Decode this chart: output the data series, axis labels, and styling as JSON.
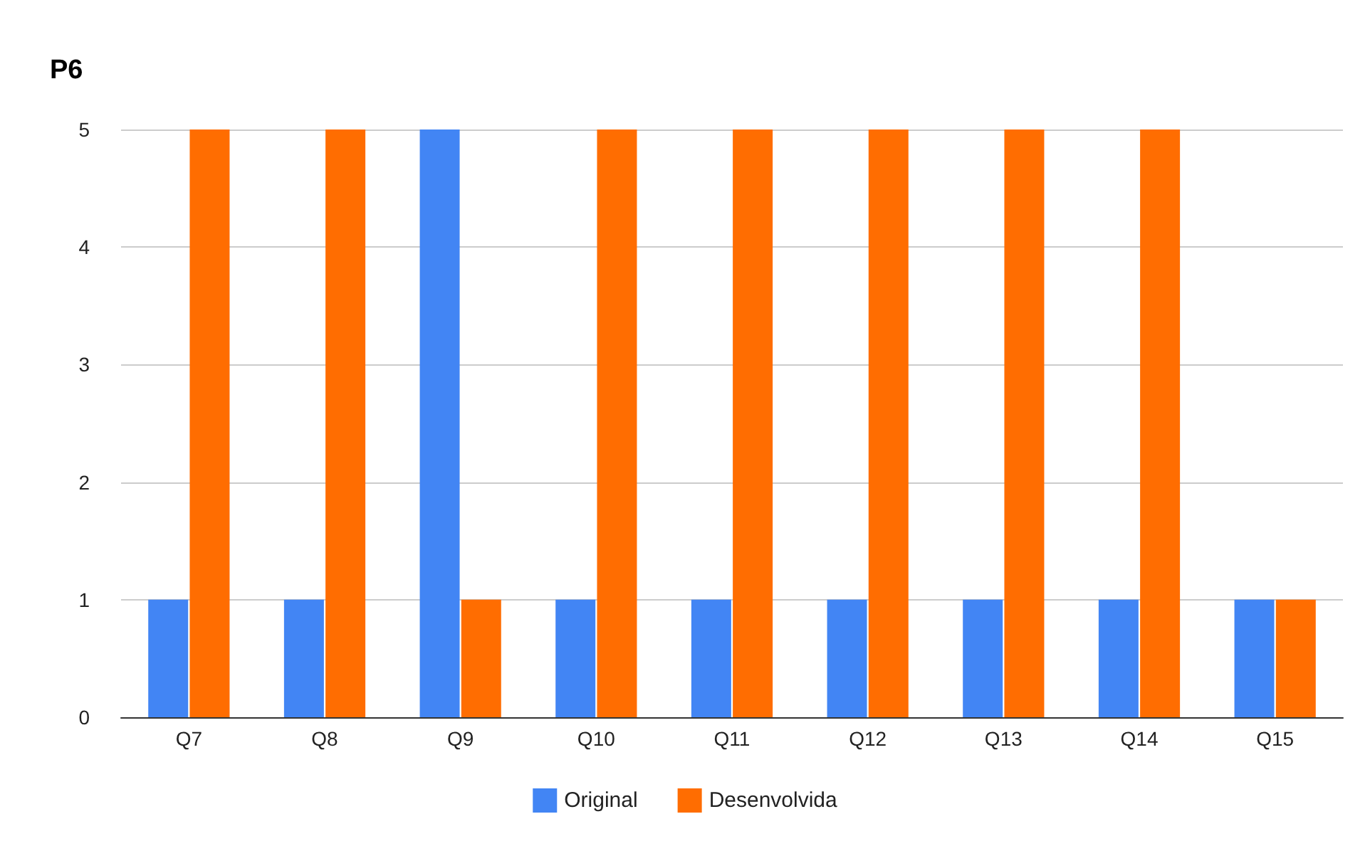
{
  "chart_data": {
    "type": "bar",
    "title": "P6",
    "categories": [
      "Q7",
      "Q8",
      "Q9",
      "Q10",
      "Q11",
      "Q12",
      "Q13",
      "Q14",
      "Q15"
    ],
    "series": [
      {
        "name": "Original",
        "color": "#4285f4",
        "values": [
          1,
          1,
          5,
          1,
          1,
          1,
          1,
          1,
          1
        ]
      },
      {
        "name": "Desenvolvida",
        "color": "#ff6d01",
        "values": [
          5,
          5,
          1,
          5,
          5,
          5,
          5,
          5,
          1
        ]
      }
    ],
    "ylim": [
      0,
      5
    ],
    "yticks": [
      0,
      1,
      2,
      3,
      4,
      5
    ],
    "grid": "y",
    "legend": "bottom"
  }
}
